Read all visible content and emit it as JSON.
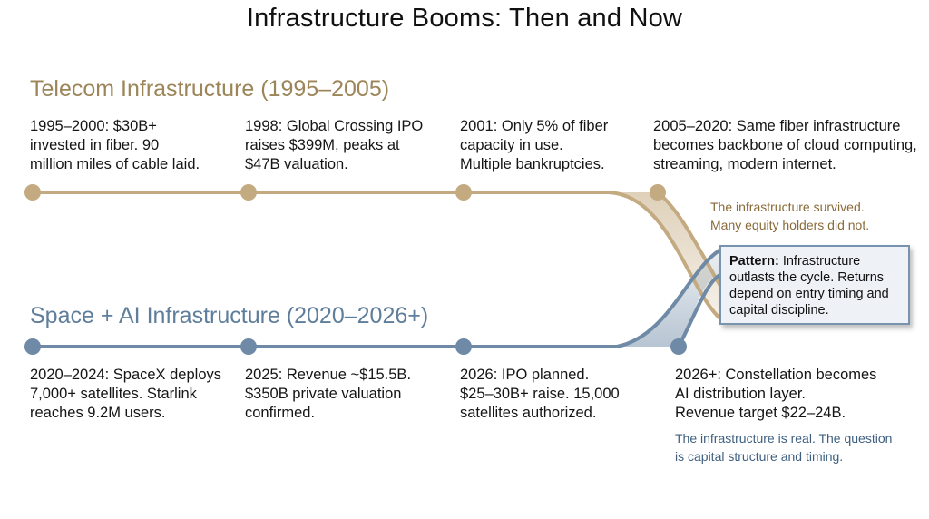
{
  "title": "Infrastructure Booms: Then and Now",
  "colors": {
    "telecom": "#c4aa80",
    "telecom_text": "#9c8559",
    "space": "#6f8aa6",
    "space_text": "#5f7e9b",
    "space_note": "#3e5f80",
    "telecom_note": "#8a6a38",
    "pattern_bg": "#eef1f6",
    "pattern_border": "#7893ae"
  },
  "telecom": {
    "heading": "Telecom Infrastructure (1995–2005)",
    "events": [
      {
        "lines": [
          "1995–2000: $30B+",
          "invested in fiber. 90",
          "million miles of cable laid."
        ]
      },
      {
        "lines": [
          "1998: Global Crossing IPO",
          "raises $399M, peaks at",
          "$47B valuation."
        ]
      },
      {
        "lines": [
          "2001: Only 5% of fiber",
          "capacity in use.",
          "Multiple bankruptcies."
        ]
      },
      {
        "lines": [
          "2005–2020: Same fiber infrastructure",
          "becomes backbone of cloud computing,",
          "streaming, modern internet."
        ]
      }
    ],
    "note": [
      "The infrastructure survived.",
      "Many equity holders did not."
    ]
  },
  "space": {
    "heading": "Space + AI Infrastructure (2020–2026+)",
    "events": [
      {
        "lines": [
          "2020–2024: SpaceX deploys",
          "7,000+ satellites. Starlink",
          "reaches 9.2M users."
        ]
      },
      {
        "lines": [
          "2025: Revenue ~$15.5B.",
          "$350B private valuation",
          "confirmed."
        ]
      },
      {
        "lines": [
          "2026: IPO planned.",
          "$25–30B+ raise. 15,000",
          "satellites authorized."
        ]
      },
      {
        "lines": [
          "2026+: Constellation becomes",
          "AI distribution layer.",
          "Revenue target $22–24B."
        ]
      }
    ],
    "note": [
      "The infrastructure is real. The question",
      "is capital structure and timing."
    ]
  },
  "pattern": {
    "label": "Pattern:",
    "lines": [
      "Infrastructure",
      "outlasts the cycle. Returns",
      "depend on entry timing and",
      "capital discipline."
    ]
  }
}
